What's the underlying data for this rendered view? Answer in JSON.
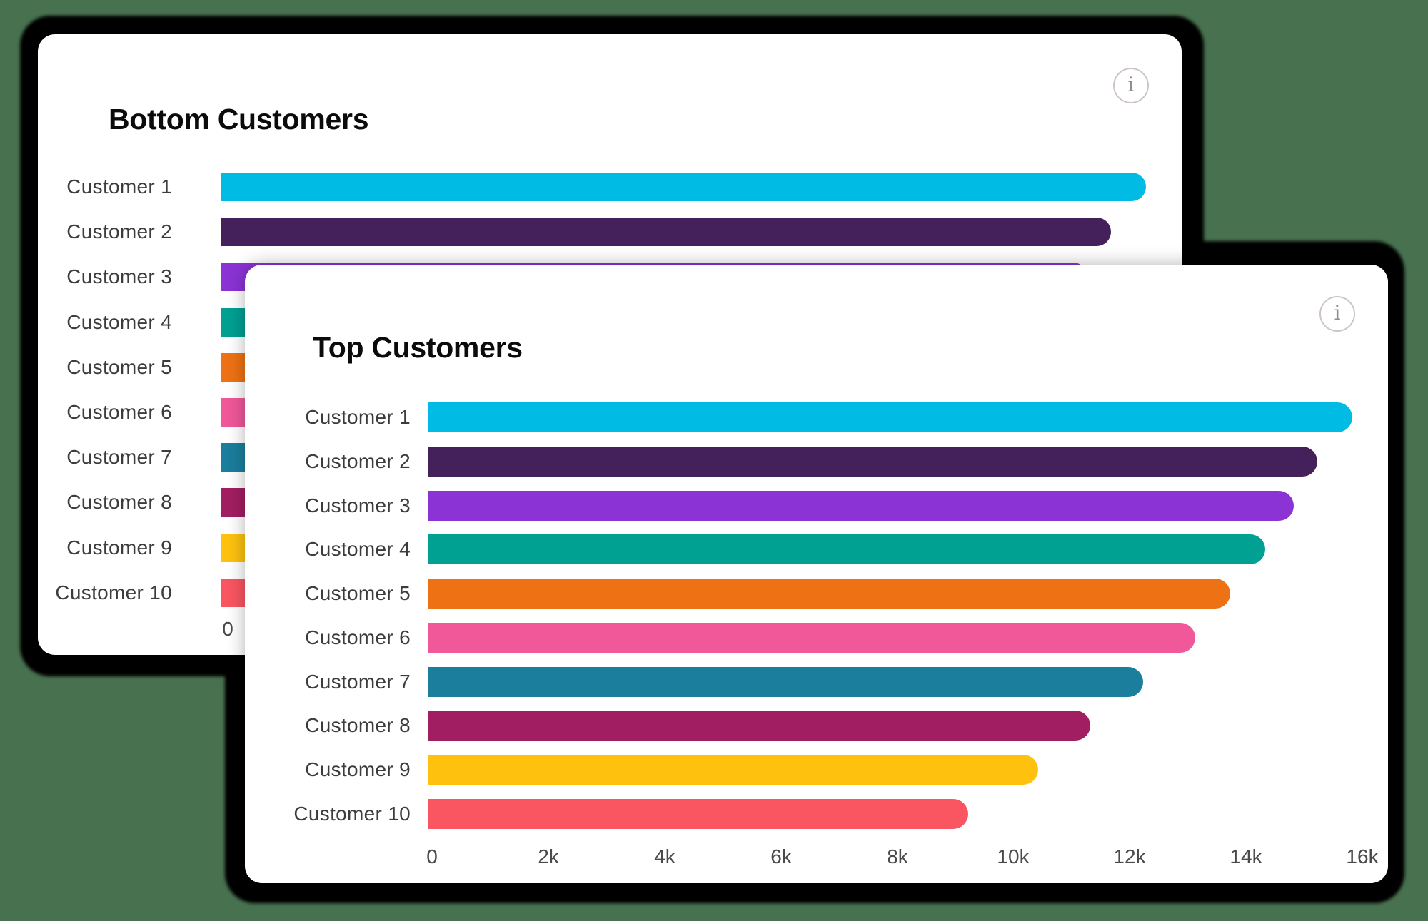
{
  "background_color": "#48714F",
  "shadow_color": "#000000",
  "card_color": "#FFFFFF",
  "palette": [
    "#00BCE4",
    "#44215B",
    "#8B33D5",
    "#00A093",
    "#EE7214",
    "#F0589A",
    "#1B7E9D",
    "#A21E62",
    "#FEC20E",
    "#FA5661"
  ],
  "cards": [
    {
      "title": "Bottom Customers",
      "info_icon": "i"
    },
    {
      "title": "Top Customers",
      "info_icon": "i"
    }
  ],
  "chart_data": [
    {
      "type": "bar",
      "orientation": "horizontal",
      "title": "Bottom Customers",
      "categories": [
        "Customer 1",
        "Customer 2",
        "Customer 3",
        "Customer 4",
        "Customer 5",
        "Customer 6",
        "Customer 7",
        "Customer 8",
        "Customer 9",
        "Customer 10"
      ],
      "values": [
        15900,
        15300,
        14900,
        14400,
        13800,
        13200,
        12300,
        11400,
        10500,
        9300
      ],
      "palette": [
        "#00BCE4",
        "#44215B",
        "#8B33D5",
        "#00A093",
        "#EE7214",
        "#F0589A",
        "#1B7E9D",
        "#A21E62",
        "#FEC20E",
        "#FA5661"
      ],
      "xlim": [
        0,
        16000
      ],
      "x_tick_labels": [
        "0"
      ],
      "grid": false,
      "legend": false
    },
    {
      "type": "bar",
      "orientation": "horizontal",
      "title": "Top Customers",
      "categories": [
        "Customer 1",
        "Customer 2",
        "Customer 3",
        "Customer 4",
        "Customer 5",
        "Customer 6",
        "Customer 7",
        "Customer 8",
        "Customer 9",
        "Customer 10"
      ],
      "values": [
        15900,
        15300,
        14900,
        14400,
        13800,
        13200,
        12300,
        11400,
        10500,
        9300
      ],
      "palette": [
        "#00BCE4",
        "#44215B",
        "#8B33D5",
        "#00A093",
        "#EE7214",
        "#F0589A",
        "#1B7E9D",
        "#A21E62",
        "#FEC20E",
        "#FA5661"
      ],
      "xlim": [
        0,
        16000
      ],
      "x_tick_labels": [
        "0",
        "2k",
        "4k",
        "6k",
        "8k",
        "10k",
        "12k",
        "14k",
        "16k"
      ],
      "grid": false,
      "legend": false
    }
  ]
}
